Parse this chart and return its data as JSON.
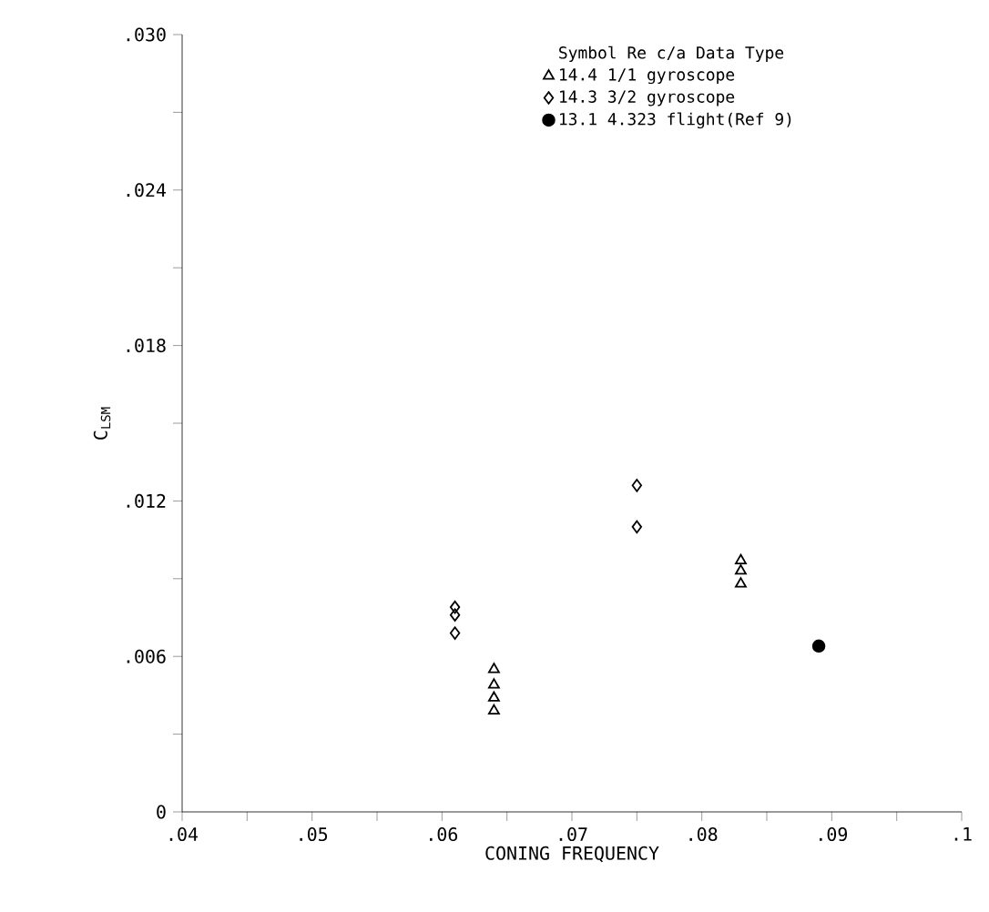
{
  "chart_data": {
    "type": "scatter",
    "xlabel": "CONING FREQUENCY",
    "ylabel": "C$_{LSM}$",
    "legend_title": "Symbol Re c/a Data Type",
    "xlim": [
      0.04,
      0.1
    ],
    "ylim": [
      0,
      0.03
    ],
    "xticks": [
      {
        "value": 0.04,
        "label": ".04"
      },
      {
        "value": 0.045,
        "label": null
      },
      {
        "value": 0.05,
        "label": ".05"
      },
      {
        "value": 0.055,
        "label": null
      },
      {
        "value": 0.06,
        "label": ".06"
      },
      {
        "value": 0.065,
        "label": null
      },
      {
        "value": 0.07,
        "label": ".07"
      },
      {
        "value": 0.075,
        "label": null
      },
      {
        "value": 0.08,
        "label": ".08"
      },
      {
        "value": 0.085,
        "label": null
      },
      {
        "value": 0.09,
        "label": ".09"
      },
      {
        "value": 0.095,
        "label": null
      },
      {
        "value": 0.1,
        "label": ".1"
      }
    ],
    "yticks": [
      0,
      {
        "value": 0.003,
        "label": null
      },
      {
        "value": 0.006,
        "label": ".006"
      },
      {
        "value": 0.009,
        "label": null
      },
      {
        "value": 0.012,
        "label": ".012"
      },
      {
        "value": 0.015,
        "label": null
      },
      {
        "value": 0.018,
        "label": ".018"
      },
      {
        "value": 0.021,
        "label": null
      },
      {
        "value": 0.024,
        "label": ".024"
      },
      {
        "value": 0.027,
        "label": null
      },
      {
        "value": 0.03,
        "label": ".030"
      }
    ],
    "grid": false,
    "legend": "top",
    "series": [
      {
        "name": "14.4 1/1 gyroscope",
        "color": "#000000",
        "marker": "triangle",
        "x": [
          0.064,
          0.064,
          0.064,
          0.064,
          0.083,
          0.083,
          0.083
        ],
        "values": [
          0.0055,
          0.0049,
          0.0044,
          0.0039,
          0.0097,
          0.0093,
          0.0088
        ]
      },
      {
        "name": "14.3 3/2 gyroscope",
        "color": "#000000",
        "marker": "diamond",
        "x": [
          0.061,
          0.061,
          0.061,
          0.075,
          0.075
        ],
        "values": [
          0.0079,
          0.0076,
          0.0069,
          0.0126,
          0.011
        ]
      },
      {
        "name": "13.1 4.323 flight(Ref 9)",
        "color": "#000000",
        "marker": "circle",
        "x": [
          0.089
        ],
        "values": [
          0.0064
        ]
      }
    ]
  }
}
